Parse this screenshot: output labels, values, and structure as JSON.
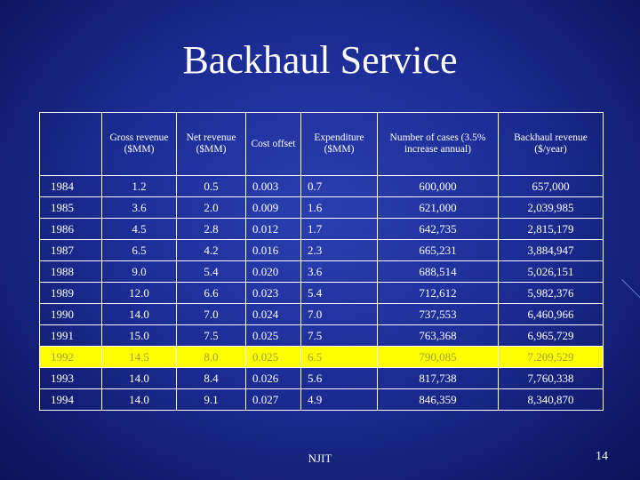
{
  "slide": {
    "title": "Backhaul Service",
    "footer_text": "NJIT",
    "page_number": "14"
  },
  "table": {
    "headers": [
      "",
      "Gross revenue ($MM)",
      "Net revenue ($MM)",
      "Cost offset",
      "Expenditure ($MM)",
      "Number of cases (3.5% increase annual)",
      "Backhaul revenue ($/year)"
    ],
    "rows": [
      {
        "year": "1984",
        "gross": "1.2",
        "net": "0.5",
        "cost": "0.003",
        "exp": "0.7",
        "cases": "600,000",
        "backhaul": "657,000"
      },
      {
        "year": "1985",
        "gross": "3.6",
        "net": "2.0",
        "cost": "0.009",
        "exp": "1.6",
        "cases": "621,000",
        "backhaul": "2,039,985"
      },
      {
        "year": "1986",
        "gross": "4.5",
        "net": "2.8",
        "cost": "0.012",
        "exp": "1.7",
        "cases": "642,735",
        "backhaul": "2,815,179"
      },
      {
        "year": "1987",
        "gross": "6.5",
        "net": "4.2",
        "cost": "0.016",
        "exp": "2.3",
        "cases": "665,231",
        "backhaul": "3,884,947"
      },
      {
        "year": "1988",
        "gross": "9.0",
        "net": "5.4",
        "cost": "0.020",
        "exp": "3.6",
        "cases": "688,514",
        "backhaul": "5,026,151"
      },
      {
        "year": "1989",
        "gross": "12.0",
        "net": "6.6",
        "cost": "0.023",
        "exp": "5.4",
        "cases": "712,612",
        "backhaul": "5,982,376"
      },
      {
        "year": "1990",
        "gross": "14.0",
        "net": "7.0",
        "cost": "0.024",
        "exp": "7.0",
        "cases": "737,553",
        "backhaul": "6,460,966"
      },
      {
        "year": "1991",
        "gross": "15.0",
        "net": "7.5",
        "cost": "0.025",
        "exp": "7.5",
        "cases": "763,368",
        "backhaul": "6,965,729"
      },
      {
        "year": "1992",
        "gross": "14.5",
        "net": "8.0",
        "cost": "0.025",
        "exp": "6.5",
        "cases": "790,085",
        "backhaul": "7,209,529"
      },
      {
        "year": "1993",
        "gross": "14.0",
        "net": "8.4",
        "cost": "0.026",
        "exp": "5.6",
        "cases": "817,738",
        "backhaul": "7,760,338"
      },
      {
        "year": "1994",
        "gross": "14.0",
        "net": "9.1",
        "cost": "0.027",
        "exp": "4.9",
        "cases": "846,359",
        "backhaul": "8,340,870"
      }
    ],
    "highlighted_row": "1992",
    "highlight_color": "#ffff00"
  },
  "colors": {
    "background": "#1c2d96",
    "text": "#ffffff"
  }
}
